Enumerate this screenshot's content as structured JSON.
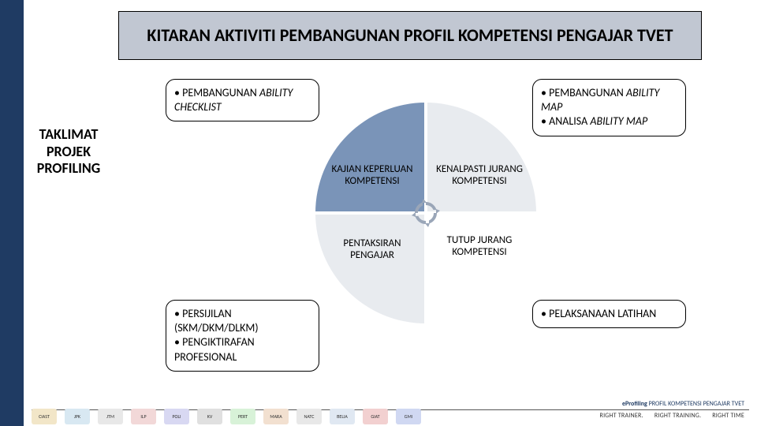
{
  "title": "KITARAN AKTIVITI PEMBANGUNAN PROFIL KOMPETENSI PENGAJAR TVET",
  "side_label": "TAKLIMAT PROJEK PROFILING",
  "circle": {
    "quadrants": {
      "tl": {
        "label": "KAJIAN KEPERLUAN KOMPETENSI",
        "fill": "#7a94b8",
        "text_color": "#000000"
      },
      "tr": {
        "label": "KENALPASTI JURANG KOMPETENSI",
        "fill": "#e8ebef",
        "text_color": "#000000"
      },
      "bl": {
        "label": "PENTAKSIRAN PENGAJAR",
        "fill": "#e8ebef",
        "text_color": "#000000"
      },
      "br": {
        "label": "TUTUP JURANG KOMPETENSI",
        "fill": "#ffffff",
        "text_color": "#000000"
      }
    },
    "gap_color": "#ffffff",
    "cycle_icon_color": "#9aa6b8"
  },
  "boxes": {
    "tl": {
      "lines": [
        "PEMBANGUNAN"
      ],
      "italic_line": "ABILITY CHECKLIST"
    },
    "tr": {
      "lines": [
        "PEMBANGUNAN"
      ],
      "italic_line": "ABILITY MAP",
      "lines2": [
        "ANALISA"
      ],
      "italic_line2": "ABILITY MAP"
    },
    "bl": {
      "lines": [
        "PERSIJILAN (SKM/DKM/DLKM)",
        "PENGIKTIRAFAN PROFESIONAL"
      ]
    },
    "br": {
      "lines": [
        "PELAKSANAAN LATIHAN"
      ]
    }
  },
  "footer": {
    "tag_bold": "eProfiling",
    "tag_rest": "PROFIL KOMPETENSI PENGAJAR TVET",
    "motto": [
      "RIGHT TRAINER.",
      "RIGHT TRAINING.",
      "RIGHT TIME"
    ]
  },
  "logos": [
    {
      "label": "CIAST",
      "bg": "#f2e6c8"
    },
    {
      "label": "JPK",
      "bg": "#d8e8f2"
    },
    {
      "label": "JTM",
      "bg": "#e8e8e8"
    },
    {
      "label": "ILP",
      "bg": "#f2d8d8"
    },
    {
      "label": "POLI",
      "bg": "#d8d8f2"
    },
    {
      "label": "KV",
      "bg": "#e0e0e0"
    },
    {
      "label": "PERT",
      "bg": "#d8f2d8"
    },
    {
      "label": "MARA",
      "bg": "#f2e0d0"
    },
    {
      "label": "NATC",
      "bg": "#e8e8e8"
    },
    {
      "label": "BELIA",
      "bg": "#e0e8f2"
    },
    {
      "label": "GIAT",
      "bg": "#f2d0d0"
    },
    {
      "label": "GMI",
      "bg": "#d0d8f2"
    }
  ],
  "style": {
    "leftbar_color": "#1f3b63",
    "title_bg": "#c1c7d2",
    "title_fontsize": 22,
    "box_border": "#000000",
    "font_family": "Calibri, Arial, sans-serif"
  }
}
